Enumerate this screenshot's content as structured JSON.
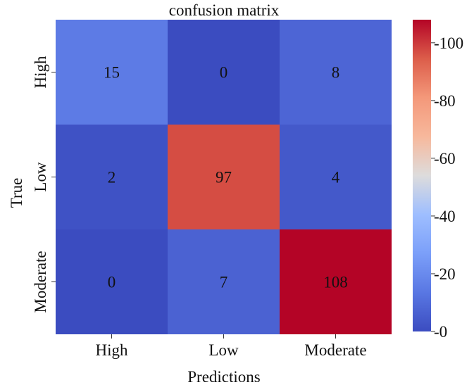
{
  "chart_data": {
    "type": "heatmap",
    "title": "confusion matrix",
    "xlabel": "Predictions",
    "ylabel": "True",
    "x_categories": [
      "High",
      "Low",
      "Moderate"
    ],
    "y_categories": [
      "High",
      "Low",
      "Moderate"
    ],
    "values": [
      [
        15,
        0,
        8
      ],
      [
        2,
        97,
        4
      ],
      [
        0,
        7,
        108
      ]
    ],
    "colorbar": {
      "min": 0,
      "max": 108,
      "ticks": [
        0,
        20,
        40,
        60,
        80,
        100
      ],
      "colormap": "coolwarm"
    },
    "legend_position": "right"
  }
}
